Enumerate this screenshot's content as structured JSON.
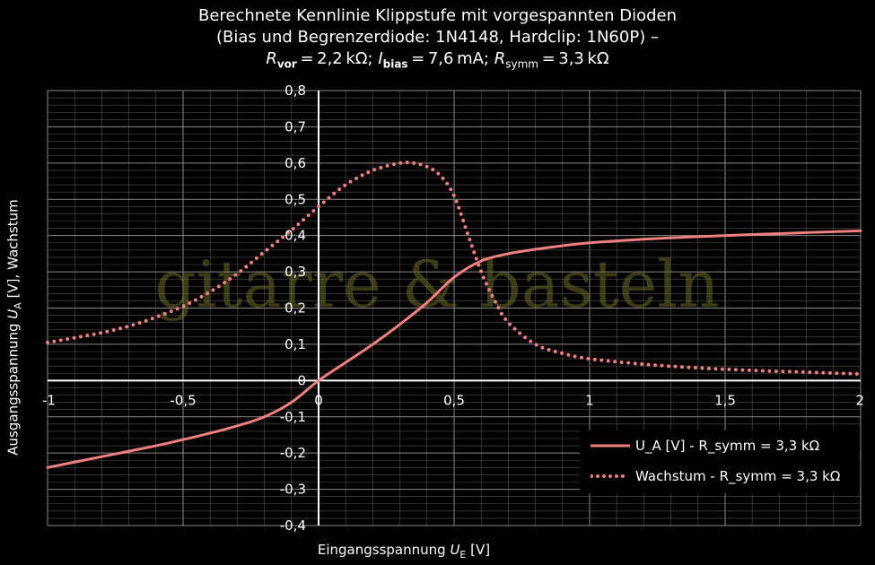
{
  "title": {
    "line1": "Berechnete Kennlinie Klippstufe mit vorgespannten Dioden",
    "line2": "(Bias und Begrenzerdiode: 1N4148, Hardclip: 1N60P) –",
    "line3": {
      "r_vor_sym": "R",
      "r_vor_sub": "vor",
      "r_vor_val": " = 2,2 kΩ; ",
      "i_bias_sym": "I",
      "i_bias_sub": "bias",
      "i_bias_val": " = 7,6 mA; ",
      "r_symm_sym": "R",
      "r_symm_sub": "symm",
      "r_symm_val": " = 3,3 kΩ"
    }
  },
  "watermark": "gitarre & basteln",
  "axes": {
    "ylabel": {
      "prefix": "Ausgangsspannung ",
      "sym": "U",
      "sub": "A",
      "suffix": " [V],  Wachstum"
    },
    "xlabel": {
      "prefix": "Eingangsspannung ",
      "sym": "U",
      "sub": "E",
      "suffix": " [V]"
    }
  },
  "legend": [
    {
      "label": "U_A [V] - R_symm = 3,3 kΩ"
    },
    {
      "label": "Wachstum - R_symm = 3,3 kΩ"
    }
  ],
  "colors": {
    "series": "#f08080",
    "grid": "#555555",
    "axis": "#ffffff"
  },
  "chart_data": {
    "type": "line",
    "xlim": [
      -1,
      2
    ],
    "ylim": [
      -0.4,
      0.8
    ],
    "x_ticks": [
      -1,
      -0.5,
      0,
      0.5,
      1,
      1.5,
      2
    ],
    "x_tick_labels": [
      "-1",
      "-0,5",
      "0",
      "0,5",
      "1",
      "1,5",
      "2"
    ],
    "y_ticks": [
      -0.4,
      -0.3,
      -0.2,
      -0.1,
      0,
      0.1,
      0.2,
      0.3,
      0.4,
      0.5,
      0.6,
      0.7,
      0.8
    ],
    "y_tick_labels": [
      "-0,4",
      "-0,3",
      "-0,2",
      "-0,1",
      "0",
      "0,1",
      "0,2",
      "0,3",
      "0,4",
      "0,5",
      "0,6",
      "0,7",
      "0,8"
    ],
    "grid": true,
    "legend_position": "bottom-right",
    "series": [
      {
        "name": "U_A [V] - R_symm = 3,3 kΩ",
        "style": "solid",
        "x": [
          -1,
          -0.9,
          -0.8,
          -0.7,
          -0.6,
          -0.5,
          -0.4,
          -0.3,
          -0.2,
          -0.1,
          0,
          0.1,
          0.2,
          0.3,
          0.4,
          0.5,
          0.6,
          0.7,
          0.8,
          0.9,
          1,
          1.2,
          1.4,
          1.6,
          1.8,
          2
        ],
        "y": [
          -0.24,
          -0.225,
          -0.21,
          -0.195,
          -0.18,
          -0.163,
          -0.145,
          -0.125,
          -0.1,
          -0.06,
          0,
          0.05,
          0.1,
          0.155,
          0.215,
          0.285,
          0.33,
          0.35,
          0.362,
          0.372,
          0.38,
          0.39,
          0.397,
          0.403,
          0.408,
          0.413
        ]
      },
      {
        "name": "Wachstum - R_symm = 3,3 kΩ",
        "style": "dotted",
        "x": [
          -1,
          -0.9,
          -0.8,
          -0.7,
          -0.6,
          -0.5,
          -0.4,
          -0.3,
          -0.2,
          -0.1,
          0,
          0.1,
          0.2,
          0.3,
          0.35,
          0.4,
          0.45,
          0.5,
          0.55,
          0.6,
          0.65,
          0.7,
          0.8,
          0.9,
          1,
          1.2,
          1.4,
          1.6,
          1.8,
          2
        ],
        "y": [
          0.105,
          0.118,
          0.132,
          0.15,
          0.175,
          0.205,
          0.245,
          0.295,
          0.355,
          0.415,
          0.48,
          0.54,
          0.58,
          0.6,
          0.6,
          0.59,
          0.565,
          0.51,
          0.405,
          0.3,
          0.22,
          0.16,
          0.1,
          0.075,
          0.06,
          0.045,
          0.035,
          0.028,
          0.023,
          0.018
        ]
      }
    ]
  }
}
